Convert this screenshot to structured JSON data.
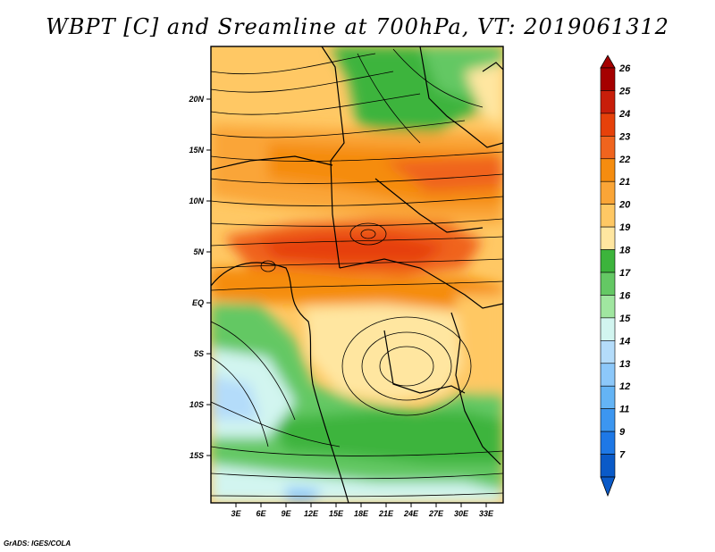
{
  "title": "WBPT [C] and Sreamline at 700hPa, VT: 2019061312",
  "footer": "GrADS: IGES/COLA",
  "map": {
    "lon_labels": [
      "3E",
      "6E",
      "9E",
      "12E",
      "15E",
      "18E",
      "21E",
      "24E",
      "27E",
      "30E",
      "33E"
    ],
    "lat_labels": [
      "20N",
      "15N",
      "10N",
      "5N",
      "EQ",
      "5S",
      "10S",
      "15S"
    ]
  },
  "colorbar": {
    "labels": [
      "26",
      "25",
      "24",
      "23",
      "22",
      "21",
      "20",
      "19",
      "18",
      "17",
      "16",
      "15",
      "14",
      "13",
      "12",
      "11",
      "9",
      "7"
    ],
    "colors": [
      "#a50000",
      "#c81e0a",
      "#e6410a",
      "#f0641e",
      "#f58c0f",
      "#faa537",
      "#ffc864",
      "#ffe6a0",
      "#3cb43c",
      "#64c864",
      "#a0e6a0",
      "#d2f5f0",
      "#b4dcfa",
      "#8cc8fa",
      "#64b4f5",
      "#3c96f0",
      "#1e78e6",
      "#0a5ac8"
    ]
  }
}
